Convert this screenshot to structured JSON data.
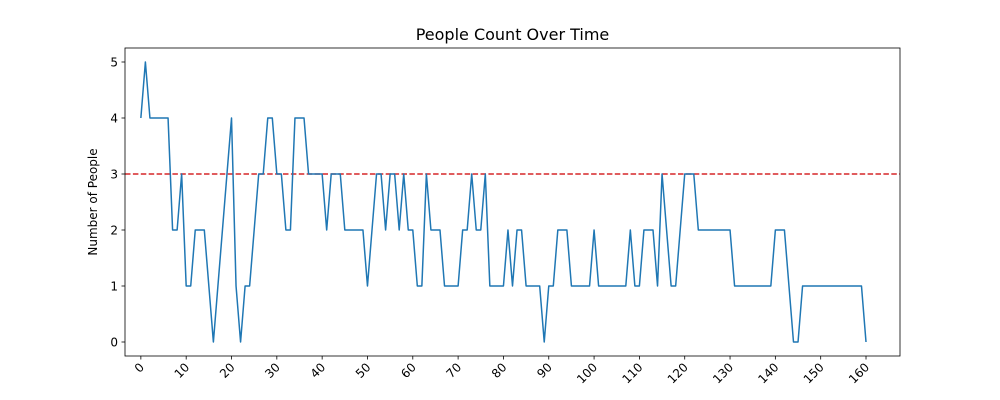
{
  "chart_data": {
    "type": "line",
    "title": "People Count Over Time",
    "xlabel": "",
    "ylabel": "Number of People",
    "xlim": [
      -3.5,
      167.5
    ],
    "ylim": [
      -0.25,
      5.25
    ],
    "x_ticks": [
      0,
      10,
      20,
      30,
      40,
      50,
      60,
      70,
      80,
      90,
      100,
      110,
      120,
      130,
      140,
      150,
      160
    ],
    "y_ticks": [
      0,
      1,
      2,
      3,
      4,
      5
    ],
    "grid": false,
    "threshold": {
      "value": 3,
      "color": "#d62728",
      "style": "dashed"
    },
    "series": [
      {
        "color": "#1f77b4",
        "x": [
          0,
          1,
          2,
          3,
          4,
          5,
          6,
          7,
          8,
          9,
          10,
          11,
          12,
          13,
          14,
          15,
          16,
          17,
          18,
          19,
          20,
          21,
          22,
          23,
          24,
          25,
          26,
          27,
          28,
          29,
          30,
          31,
          32,
          33,
          34,
          35,
          36,
          37,
          38,
          39,
          40,
          41,
          42,
          43,
          44,
          45,
          46,
          47,
          48,
          49,
          50,
          51,
          52,
          53,
          54,
          55,
          56,
          57,
          58,
          59,
          60,
          61,
          62,
          63,
          64,
          65,
          66,
          67,
          68,
          69,
          70,
          71,
          72,
          73,
          74,
          75,
          76,
          77,
          78,
          79,
          80,
          81,
          82,
          83,
          84,
          85,
          86,
          87,
          88,
          89,
          90,
          91,
          92,
          93,
          94,
          95,
          96,
          97,
          98,
          99,
          100,
          101,
          102,
          103,
          104,
          105,
          106,
          107,
          108,
          109,
          110,
          111,
          112,
          113,
          114,
          115,
          116,
          117,
          118,
          119,
          120,
          121,
          122,
          123,
          124,
          125,
          126,
          127,
          128,
          129,
          130,
          131,
          132,
          133,
          134,
          135,
          136,
          137,
          138,
          139,
          140,
          141,
          142,
          143,
          144,
          145,
          146,
          147,
          148,
          149,
          150,
          151,
          152,
          153,
          154,
          155,
          156,
          157,
          158,
          159,
          160
        ],
        "y": [
          4,
          5,
          4,
          4,
          4,
          4,
          4,
          2,
          2,
          3,
          1,
          1,
          2,
          2,
          2,
          1,
          0,
          1,
          2,
          3,
          4,
          1,
          0,
          1,
          1,
          2,
          3,
          3,
          4,
          4,
          3,
          3,
          2,
          2,
          4,
          4,
          4,
          3,
          3,
          3,
          3,
          2,
          3,
          3,
          3,
          2,
          2,
          2,
          2,
          2,
          1,
          2,
          3,
          3,
          2,
          3,
          3,
          2,
          3,
          2,
          2,
          1,
          1,
          3,
          2,
          2,
          2,
          1,
          1,
          1,
          1,
          2,
          2,
          3,
          2,
          2,
          3,
          1,
          1,
          1,
          1,
          2,
          1,
          2,
          2,
          1,
          1,
          1,
          1,
          0,
          1,
          1,
          2,
          2,
          2,
          1,
          1,
          1,
          1,
          1,
          2,
          1,
          1,
          1,
          1,
          1,
          1,
          1,
          2,
          1,
          1,
          2,
          2,
          2,
          1,
          3,
          2,
          1,
          1,
          2,
          3,
          3,
          3,
          2,
          2,
          2,
          2,
          2,
          2,
          2,
          2,
          1,
          1,
          1,
          1,
          1,
          1,
          1,
          1,
          1,
          2,
          2,
          2,
          1,
          0,
          0,
          1,
          1,
          1,
          1,
          1,
          1,
          1,
          1,
          1,
          1,
          1,
          1,
          1,
          1,
          0
        ]
      }
    ]
  }
}
